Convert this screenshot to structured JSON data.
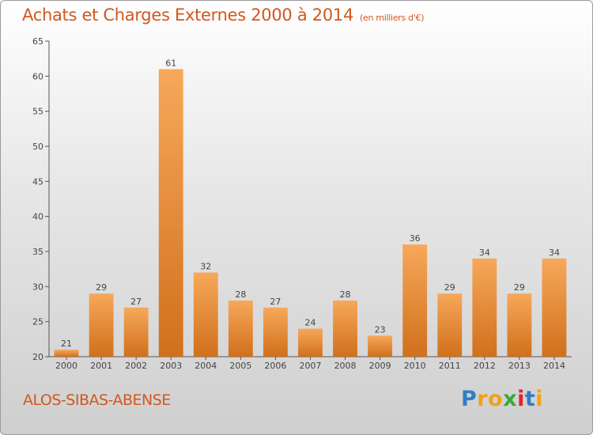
{
  "header": {
    "title": "Achats et Charges Externes 2000 à 2014",
    "unit": "(en milliers d'€)"
  },
  "footer": {
    "commune": "ALOS-SIBAS-ABENSE",
    "logo_letters": [
      "P",
      "r",
      "o",
      "x",
      "i",
      "t",
      "i"
    ],
    "logo_colors": [
      "#2f7fc1",
      "#f0a11b",
      "#f0a11b",
      "#3da63a",
      "#e2232a",
      "#2f7fc1",
      "#f0a11b"
    ]
  },
  "colors": {
    "title": "#d2571f",
    "bar_light": "#f7a85a",
    "bar_dark": "#d0701c",
    "axis": "#555555"
  },
  "chart_data": {
    "type": "bar",
    "title": "Achats et Charges Externes 2000 à 2014",
    "subtitle": "(en milliers d'€)",
    "categories": [
      "2000",
      "2001",
      "2002",
      "2003",
      "2004",
      "2005",
      "2006",
      "2007",
      "2008",
      "2009",
      "2010",
      "2011",
      "2012",
      "2013",
      "2014"
    ],
    "values": [
      21,
      29,
      27,
      61,
      32,
      28,
      27,
      24,
      28,
      23,
      36,
      29,
      34,
      29,
      34
    ],
    "ylim": [
      20,
      65
    ],
    "yticks": [
      20,
      25,
      30,
      35,
      40,
      45,
      50,
      55,
      60,
      65
    ],
    "grid": false,
    "data_labels": true
  }
}
